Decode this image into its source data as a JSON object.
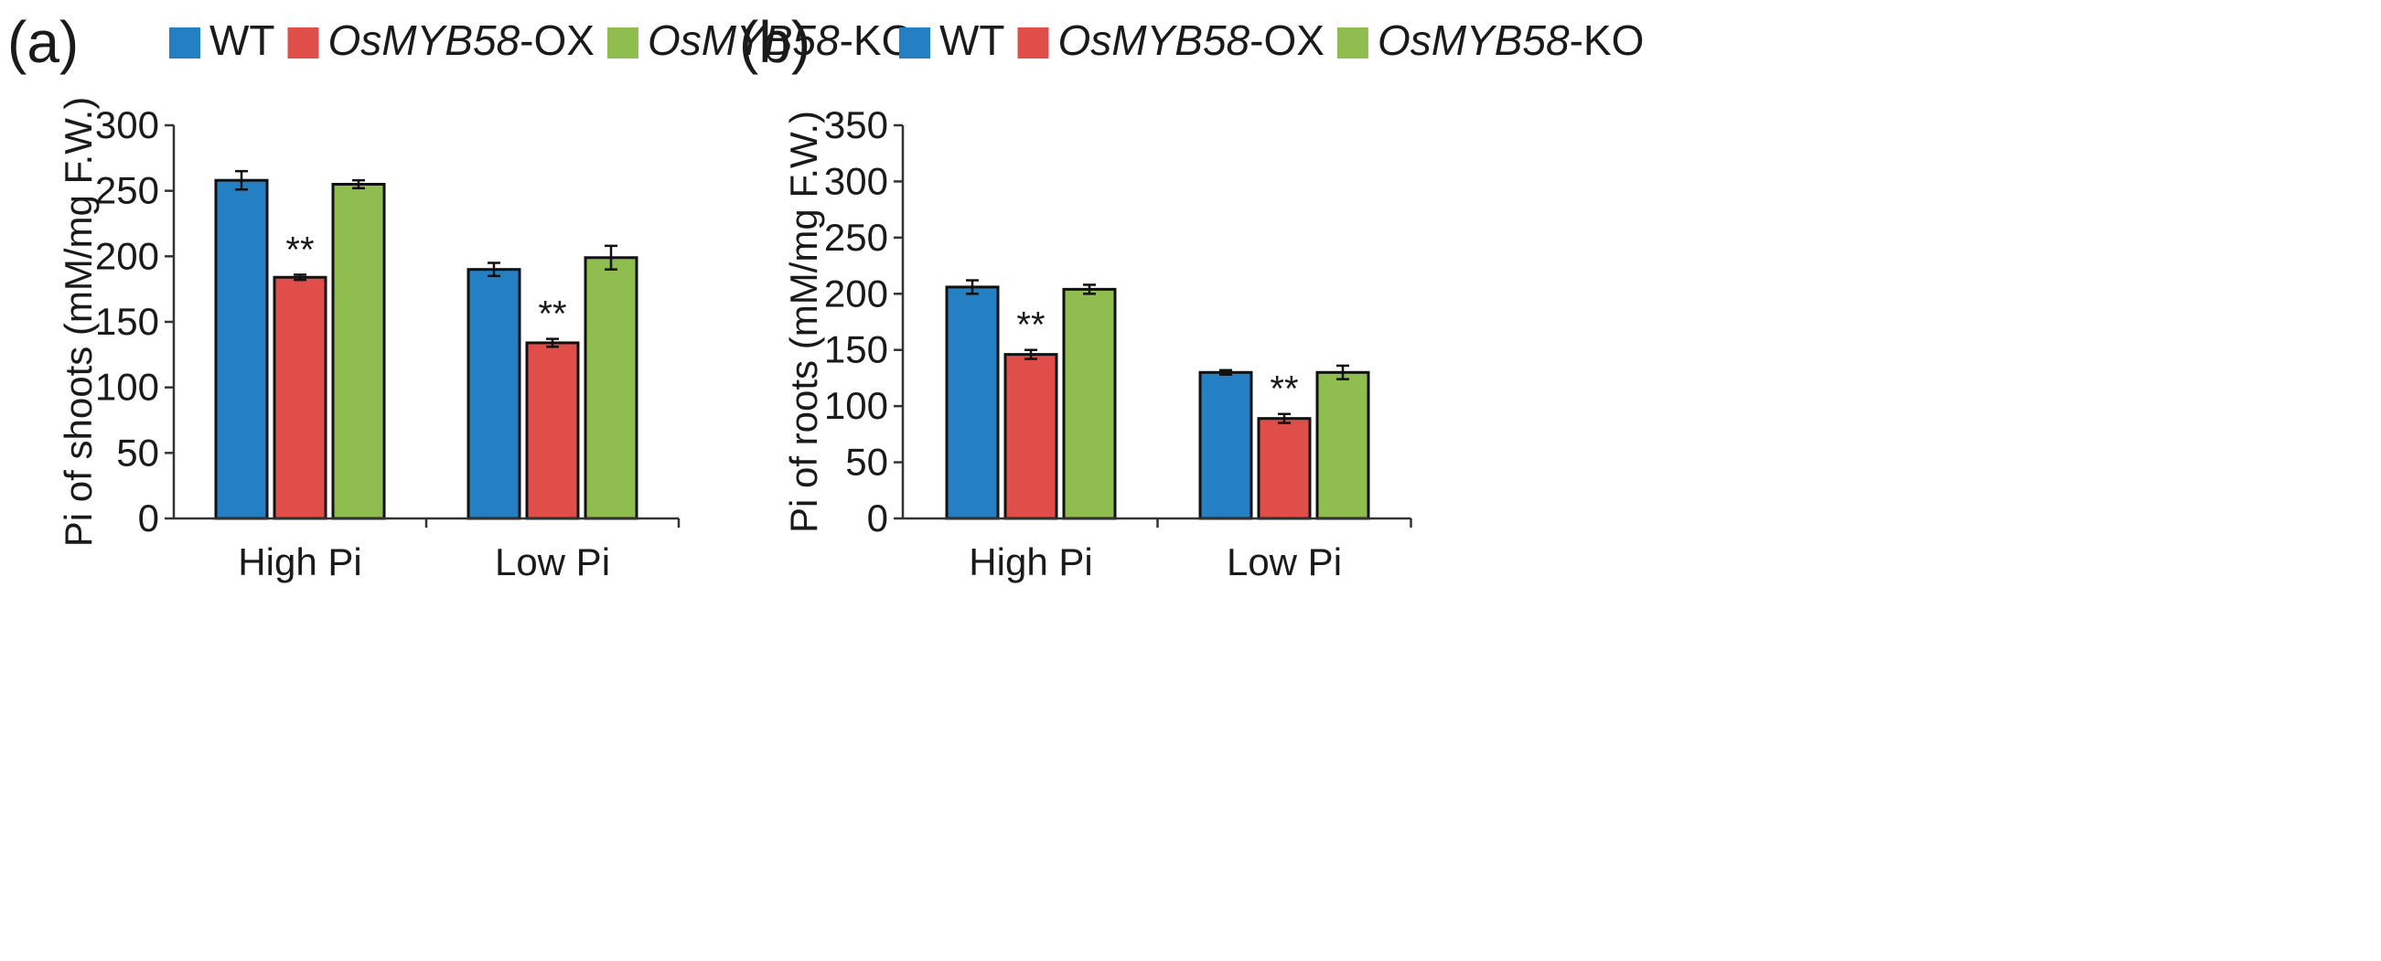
{
  "chart_data": [
    {
      "panel": "(a)",
      "type": "bar",
      "categories": [
        "High Pi",
        "Low Pi"
      ],
      "ylabel": "Pi of shoots (mM/mg F.W.)",
      "ylim": [
        0,
        300
      ],
      "yticks": [
        0,
        50,
        100,
        150,
        200,
        250,
        300
      ],
      "grid": false,
      "legend_position": "top",
      "series": [
        {
          "name": "WT",
          "color": "#2580c3",
          "values": [
            258,
            190
          ],
          "errors": [
            7,
            5
          ],
          "annotations": [
            "",
            ""
          ]
        },
        {
          "name": "OsMYB58-OX",
          "color": "#e04e4a",
          "values": [
            184,
            134
          ],
          "errors": [
            2,
            3
          ],
          "annotations": [
            "**",
            "**"
          ]
        },
        {
          "name": "OsMYB58-KO",
          "color": "#8fbd4f",
          "values": [
            255,
            199
          ],
          "errors": [
            3,
            9
          ],
          "annotations": [
            "",
            ""
          ]
        }
      ]
    },
    {
      "panel": "(b)",
      "type": "bar",
      "categories": [
        "High Pi",
        "Low Pi"
      ],
      "ylabel": "Pi of roots (mM/mg F.W.)",
      "ylim": [
        0,
        350
      ],
      "yticks": [
        0,
        50,
        100,
        150,
        200,
        250,
        300,
        350
      ],
      "grid": false,
      "legend_position": "top",
      "series": [
        {
          "name": "WT",
          "color": "#2580c3",
          "values": [
            206,
            130
          ],
          "errors": [
            6,
            2
          ],
          "annotations": [
            "",
            ""
          ]
        },
        {
          "name": "OsMYB58-OX",
          "color": "#e04e4a",
          "values": [
            146,
            89
          ],
          "errors": [
            4,
            4
          ],
          "annotations": [
            "**",
            "**"
          ]
        },
        {
          "name": "OsMYB58-KO",
          "color": "#8fbd4f",
          "values": [
            204,
            130
          ],
          "errors": [
            4,
            6
          ],
          "annotations": [
            "",
            ""
          ]
        }
      ]
    }
  ],
  "legend_parts": [
    {
      "italic": "",
      "rest": "WT"
    },
    {
      "italic": "OsMYB58",
      "rest": "-OX"
    },
    {
      "italic": "OsMYB58",
      "rest": "-KO"
    }
  ]
}
